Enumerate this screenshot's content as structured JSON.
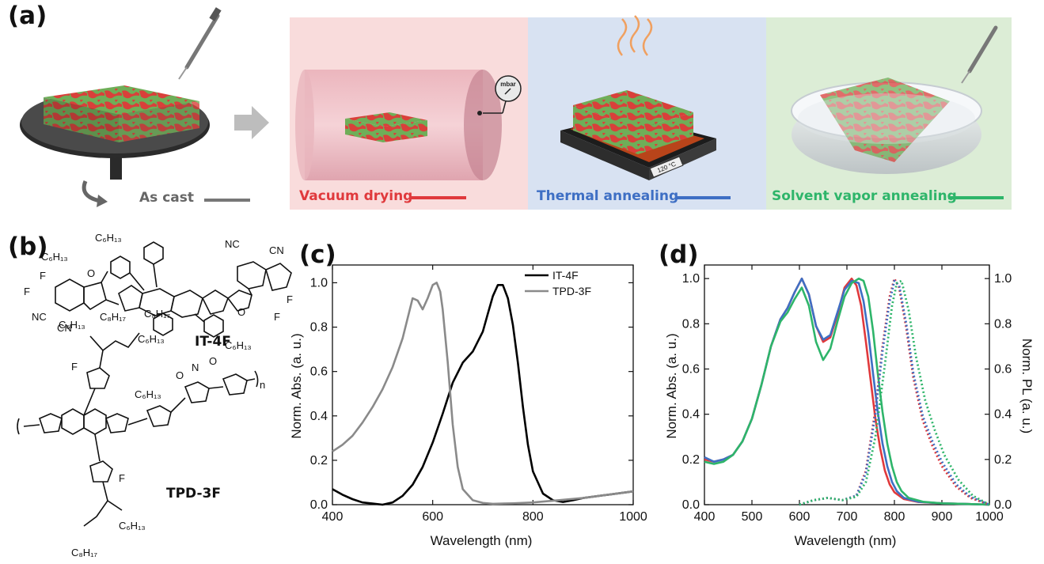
{
  "panels": {
    "a": "(a)",
    "b": "(b)",
    "c": "(c)",
    "d": "(d)"
  },
  "stages": [
    {
      "label": "As cast",
      "color": "#777777"
    },
    {
      "label": "Vacuum drying",
      "color": "#e0393c",
      "bg": "#f9dcdc"
    },
    {
      "label": "Thermal annealing",
      "color": "#3e6fc4",
      "bg": "#d8e2f2"
    },
    {
      "label": "Solvent vapor annealing",
      "color": "#2eb56a",
      "bg": "#dcedd6"
    }
  ],
  "gauge_label": "mbar",
  "hotplate_label": "120 °C",
  "molecules": {
    "it4f": "IT-4F",
    "tpd3f": "TPD-3F"
  },
  "chart_data": [
    {
      "type": "line",
      "panel": "(c)",
      "xlabel": "Wavelength (nm)",
      "ylabel": "Norm. Abs. (a. u.)",
      "xlim": [
        400,
        1000
      ],
      "ylim": [
        0,
        1.08
      ],
      "xticks": [
        400,
        600,
        800,
        1000
      ],
      "yticks": [
        "0.0",
        "0.2",
        "0.4",
        "0.6",
        "0.8",
        "1.0"
      ],
      "legend_position": "top-right",
      "series": [
        {
          "name": "IT-4F",
          "color": "#000000",
          "x": [
            400,
            420,
            440,
            460,
            480,
            500,
            520,
            540,
            560,
            580,
            600,
            620,
            640,
            660,
            680,
            700,
            710,
            720,
            730,
            740,
            750,
            760,
            770,
            780,
            790,
            800,
            820,
            840,
            860,
            880,
            900,
            950,
            1000
          ],
          "y": [
            0.07,
            0.045,
            0.025,
            0.01,
            0.005,
            0.0,
            0.01,
            0.04,
            0.09,
            0.17,
            0.28,
            0.41,
            0.55,
            0.64,
            0.69,
            0.78,
            0.86,
            0.94,
            0.99,
            0.99,
            0.93,
            0.81,
            0.64,
            0.44,
            0.27,
            0.15,
            0.05,
            0.02,
            0.012,
            0.02,
            0.03,
            0.045,
            0.06
          ]
        },
        {
          "name": "TPD-3F",
          "color": "#8a8a8a",
          "x": [
            400,
            420,
            440,
            460,
            480,
            500,
            520,
            540,
            550,
            560,
            570,
            580,
            590,
            600,
            608,
            615,
            620,
            630,
            640,
            650,
            660,
            680,
            700,
            720,
            760,
            800,
            850,
            900,
            950,
            1000
          ],
          "y": [
            0.24,
            0.27,
            0.31,
            0.37,
            0.44,
            0.52,
            0.62,
            0.75,
            0.84,
            0.93,
            0.92,
            0.88,
            0.93,
            0.99,
            1.0,
            0.96,
            0.88,
            0.64,
            0.36,
            0.17,
            0.07,
            0.02,
            0.008,
            0.004,
            0.006,
            0.01,
            0.02,
            0.03,
            0.045,
            0.06
          ]
        }
      ]
    },
    {
      "type": "line",
      "panel": "(d)",
      "xlabel": "Wavelength (nm)",
      "ylabel": "Norm. Abs. (a. u.)",
      "ylabel_right": "Norm. PL (a. u.)",
      "xlim": [
        400,
        1000
      ],
      "ylim": [
        0,
        1.06
      ],
      "xticks": [
        400,
        500,
        600,
        700,
        800,
        900,
        1000
      ],
      "yticks": [
        "0.0",
        "0.2",
        "0.4",
        "0.6",
        "0.8",
        "1.0"
      ],
      "series": [
        {
          "kind": "abs",
          "color": "#e0393c",
          "x": [
            400,
            420,
            440,
            460,
            480,
            500,
            520,
            540,
            560,
            575,
            590,
            605,
            620,
            635,
            650,
            665,
            680,
            695,
            710,
            720,
            730,
            740,
            750,
            760,
            770,
            780,
            790,
            800,
            820,
            850,
            900,
            950,
            1000
          ],
          "y": [
            0.2,
            0.19,
            0.2,
            0.22,
            0.28,
            0.38,
            0.53,
            0.7,
            0.82,
            0.87,
            0.94,
            1.0,
            0.93,
            0.79,
            0.72,
            0.74,
            0.84,
            0.96,
            1.0,
            0.97,
            0.88,
            0.72,
            0.55,
            0.38,
            0.25,
            0.15,
            0.09,
            0.055,
            0.025,
            0.012,
            0.006,
            0.003,
            0.0
          ]
        },
        {
          "kind": "abs",
          "color": "#3e6fc4",
          "x": [
            400,
            420,
            440,
            460,
            480,
            500,
            520,
            540,
            560,
            575,
            590,
            605,
            620,
            635,
            650,
            665,
            680,
            695,
            710,
            725,
            735,
            745,
            755,
            765,
            775,
            785,
            795,
            805,
            820,
            850,
            900,
            950,
            1000
          ],
          "y": [
            0.21,
            0.19,
            0.2,
            0.22,
            0.28,
            0.38,
            0.53,
            0.7,
            0.82,
            0.87,
            0.94,
            1.0,
            0.93,
            0.79,
            0.73,
            0.75,
            0.85,
            0.95,
            0.99,
            0.98,
            0.9,
            0.76,
            0.58,
            0.41,
            0.27,
            0.17,
            0.1,
            0.06,
            0.03,
            0.013,
            0.006,
            0.003,
            0.0
          ]
        },
        {
          "kind": "abs",
          "color": "#2eb56a",
          "x": [
            400,
            420,
            440,
            460,
            480,
            500,
            520,
            540,
            560,
            575,
            590,
            605,
            620,
            635,
            650,
            665,
            680,
            695,
            710,
            725,
            735,
            745,
            755,
            765,
            775,
            785,
            795,
            805,
            815,
            830,
            860,
            900,
            950,
            1000
          ],
          "y": [
            0.19,
            0.18,
            0.19,
            0.22,
            0.28,
            0.38,
            0.53,
            0.7,
            0.81,
            0.85,
            0.91,
            0.96,
            0.88,
            0.72,
            0.64,
            0.69,
            0.81,
            0.92,
            0.98,
            1.0,
            0.99,
            0.92,
            0.77,
            0.58,
            0.41,
            0.27,
            0.17,
            0.1,
            0.06,
            0.03,
            0.013,
            0.006,
            0.003,
            0.0
          ]
        },
        {
          "kind": "pl",
          "color": "#e0393c",
          "x": [
            600,
            630,
            660,
            690,
            720,
            740,
            760,
            775,
            790,
            800,
            810,
            825,
            840,
            860,
            880,
            900,
            930,
            960,
            1000
          ],
          "y": [
            0.0,
            0.02,
            0.03,
            0.02,
            0.04,
            0.15,
            0.42,
            0.7,
            0.92,
            1.0,
            0.96,
            0.78,
            0.56,
            0.37,
            0.26,
            0.17,
            0.08,
            0.03,
            0.0
          ]
        },
        {
          "kind": "pl",
          "color": "#3e6fc4",
          "x": [
            600,
            630,
            660,
            690,
            720,
            740,
            760,
            775,
            790,
            800,
            810,
            825,
            840,
            860,
            880,
            900,
            930,
            960,
            1000
          ],
          "y": [
            0.0,
            0.02,
            0.03,
            0.02,
            0.04,
            0.14,
            0.4,
            0.68,
            0.9,
            0.99,
            0.97,
            0.8,
            0.58,
            0.39,
            0.28,
            0.19,
            0.09,
            0.035,
            0.0
          ]
        },
        {
          "kind": "pl",
          "color": "#2eb56a",
          "x": [
            600,
            630,
            660,
            690,
            720,
            740,
            760,
            780,
            795,
            805,
            815,
            830,
            845,
            865,
            885,
            905,
            935,
            965,
            1000
          ],
          "y": [
            0.0,
            0.02,
            0.03,
            0.02,
            0.035,
            0.1,
            0.3,
            0.62,
            0.88,
            0.98,
            0.99,
            0.86,
            0.66,
            0.46,
            0.33,
            0.22,
            0.11,
            0.04,
            0.0
          ]
        }
      ]
    }
  ]
}
